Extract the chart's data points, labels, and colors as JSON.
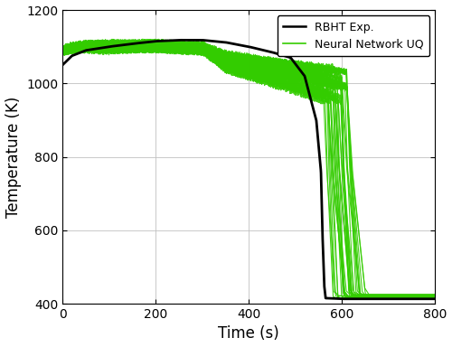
{
  "xlabel": "Time (s)",
  "ylabel": "Temperature (K)",
  "xlim": [
    0,
    800
  ],
  "ylim": [
    400,
    1200
  ],
  "xticks": [
    0,
    200,
    400,
    600,
    800
  ],
  "yticks": [
    400,
    600,
    800,
    1000,
    1200
  ],
  "exp_color": "#000000",
  "nn_color": "#33cc00",
  "exp_linewidth": 2.0,
  "nn_linewidth": 0.8,
  "legend_labels": [
    "RBHT Exp.",
    "Neural Network UQ"
  ],
  "n_nn_curves": 35,
  "seed": 7
}
